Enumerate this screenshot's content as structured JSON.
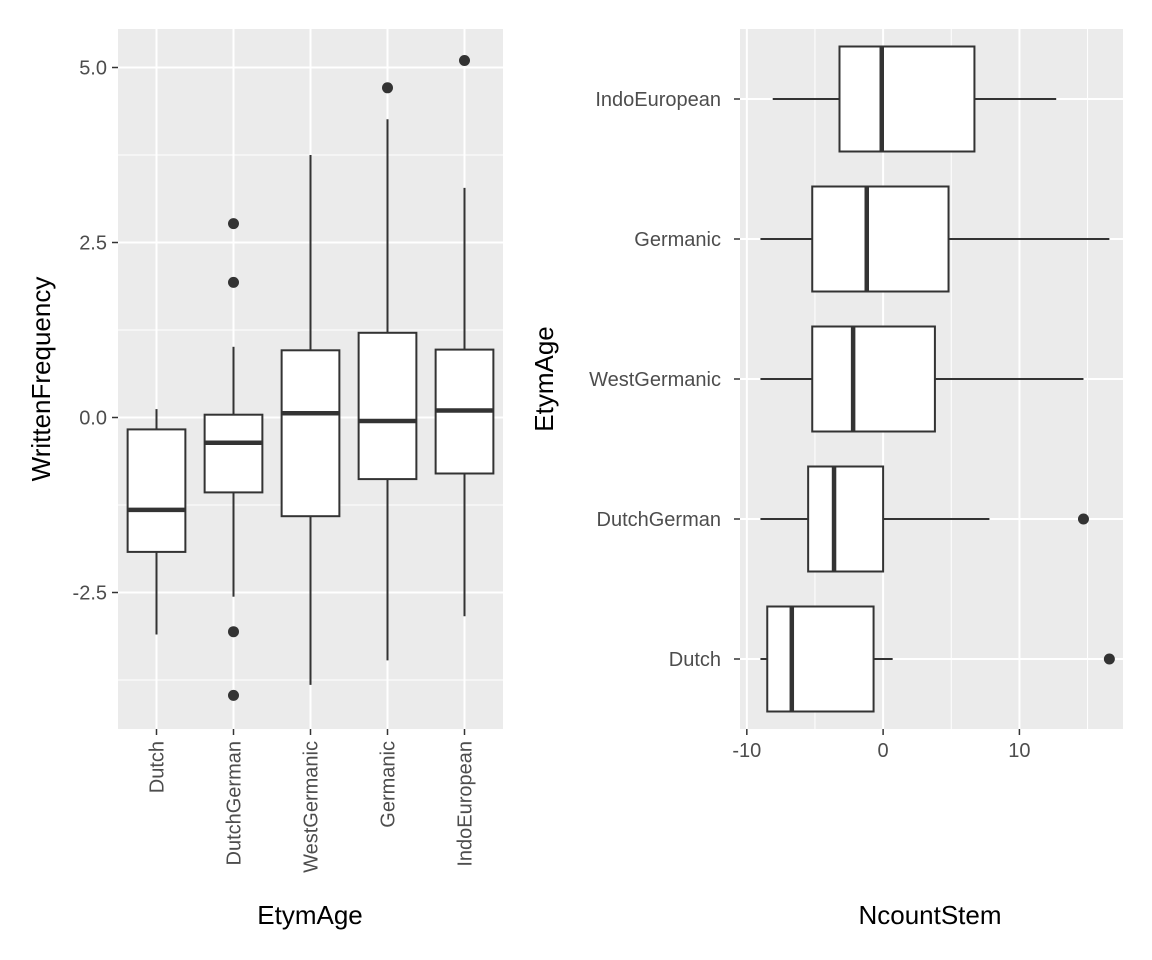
{
  "chart_data": [
    {
      "type": "boxplot",
      "orientation": "vertical",
      "xlabel": "EtymAge",
      "ylabel": "WrittenFrequency",
      "categories": [
        "Dutch",
        "DutchGerman",
        "WestGermanic",
        "Germanic",
        "IndoEuropean"
      ],
      "ylim": [
        -4.45,
        5.55
      ],
      "y_ticks": [
        -2.5,
        0.0,
        2.5,
        5.0
      ],
      "y_tick_labels": [
        "-2.5",
        "0.0",
        "2.5",
        "5.0"
      ],
      "grid": true,
      "boxes": [
        {
          "category": "Dutch",
          "whisker_low": -3.1,
          "q1": -1.92,
          "median": -1.32,
          "q3": -0.17,
          "whisker_high": 0.12,
          "outliers": []
        },
        {
          "category": "DutchGerman",
          "whisker_low": -2.56,
          "q1": -1.07,
          "median": -0.36,
          "q3": 0.04,
          "whisker_high": 1.01,
          "outliers": [
            2.77,
            1.93,
            -3.06,
            -3.97
          ]
        },
        {
          "category": "WestGermanic",
          "whisker_low": -3.82,
          "q1": -1.41,
          "median": 0.06,
          "q3": 0.96,
          "whisker_high": 3.75,
          "outliers": []
        },
        {
          "category": "Germanic",
          "whisker_low": -3.47,
          "q1": -0.88,
          "median": -0.05,
          "q3": 1.21,
          "whisker_high": 4.26,
          "outliers": [
            4.71
          ]
        },
        {
          "category": "IndoEuropean",
          "whisker_low": -2.84,
          "q1": -0.8,
          "median": 0.1,
          "q3": 0.97,
          "whisker_high": 3.28,
          "outliers": [
            5.1
          ]
        }
      ]
    },
    {
      "type": "boxplot",
      "orientation": "horizontal",
      "xlabel": "NcountStem",
      "ylabel": "EtymAge",
      "categories": [
        "Dutch",
        "DutchGerman",
        "WestGermanic",
        "Germanic",
        "IndoEuropean"
      ],
      "xlim": [
        -10.5,
        17.6
      ],
      "x_ticks": [
        -10,
        0,
        10
      ],
      "x_tick_labels": [
        "-10",
        "0",
        "10"
      ],
      "grid": true,
      "boxes": [
        {
          "category": "Dutch",
          "whisker_low": -9.0,
          "q1": -8.5,
          "median": -6.7,
          "q3": -0.7,
          "whisker_high": 0.7,
          "outliers": [
            16.6
          ]
        },
        {
          "category": "DutchGerman",
          "whisker_low": -9.0,
          "q1": -5.5,
          "median": -3.6,
          "q3": 0.0,
          "whisker_high": 7.8,
          "outliers": [
            14.7
          ]
        },
        {
          "category": "WestGermanic",
          "whisker_low": -9.0,
          "q1": -5.2,
          "median": -2.2,
          "q3": 3.8,
          "whisker_high": 14.7,
          "outliers": []
        },
        {
          "category": "Germanic",
          "whisker_low": -9.0,
          "q1": -5.2,
          "median": -1.2,
          "q3": 4.8,
          "whisker_high": 16.6,
          "outliers": []
        },
        {
          "category": "IndoEuropean",
          "whisker_low": -8.1,
          "q1": -3.2,
          "median": -0.1,
          "q3": 6.7,
          "whisker_high": 12.7,
          "outliers": []
        }
      ]
    }
  ]
}
